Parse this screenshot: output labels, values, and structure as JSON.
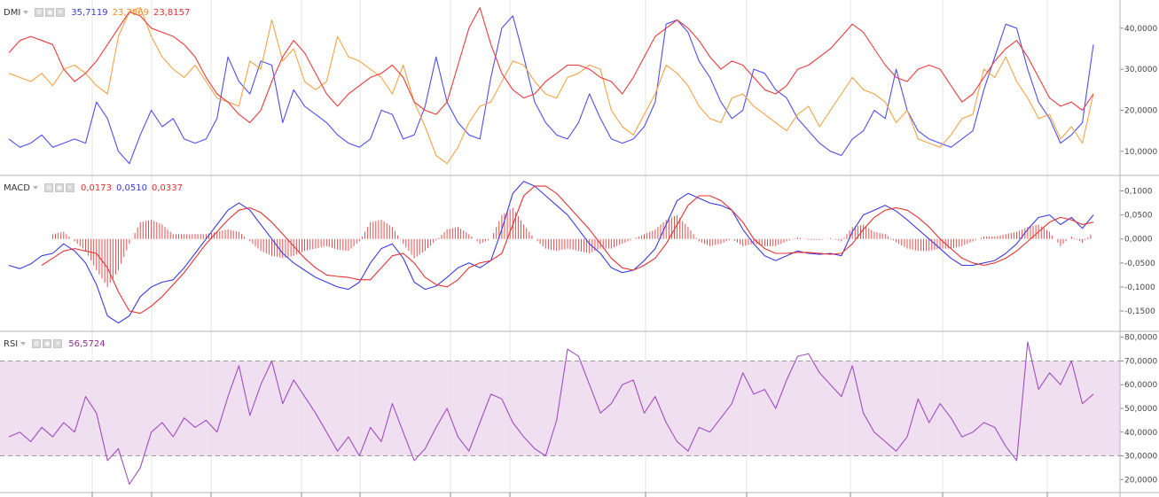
{
  "colors": {
    "dmi_plus": "#4f4ff0",
    "dmi_minus": "#f5a347",
    "adx": "#ec3b3b",
    "macd_line": "#3a3ae6",
    "signal_line": "#e83030",
    "histogram": "#e25050",
    "rsi_line": "#a24cc0",
    "rsi_band": "#efdff0",
    "grid": "#e6e6e6",
    "border": "#b5b5b5"
  },
  "icons": [
    "chevron-down-icon",
    "settings-icon",
    "eye-icon",
    "close-icon"
  ],
  "panels": {
    "dmi": {
      "name": "DMI",
      "values": [
        "35,7119",
        "23,7869",
        "23,8157"
      ]
    },
    "macd": {
      "name": "MACD",
      "values": [
        "0,0173",
        "0,0510",
        "0,0337"
      ]
    },
    "rsi": {
      "name": "RSI",
      "values": [
        "56,5724"
      ]
    }
  },
  "chart_data": [
    {
      "type": "line",
      "name": "DMI",
      "x_count": 100,
      "ylim": [
        5,
        46
      ],
      "y_ticks": [
        10,
        20,
        30,
        40
      ],
      "y_tick_labels": [
        "10,0000",
        "20,0000",
        "30,0000",
        "40,0000"
      ],
      "grid": false,
      "series": [
        {
          "key": "plus_di",
          "values": [
            13,
            11,
            12,
            14,
            11,
            12,
            13,
            12,
            22,
            18,
            10,
            7,
            14,
            20,
            16,
            18,
            13,
            12,
            13,
            18,
            33,
            27,
            24,
            32,
            31,
            17,
            25,
            21,
            19,
            17,
            14,
            12,
            11,
            13,
            20,
            19,
            13,
            14,
            21,
            33,
            22,
            17,
            14,
            13,
            28,
            40,
            43,
            33,
            22,
            17,
            14,
            13,
            17,
            24,
            18,
            13,
            12,
            13,
            16,
            22,
            41,
            42,
            39,
            32,
            28,
            22,
            18,
            20,
            30,
            29,
            25,
            23,
            18,
            15,
            12,
            10,
            9,
            13,
            15,
            20,
            18,
            30,
            20,
            15,
            13,
            12,
            11,
            13,
            15,
            25,
            33,
            41,
            40,
            30,
            22,
            18,
            12,
            14,
            17,
            36
          ]
        },
        {
          "key": "minus_di",
          "values": [
            29,
            28,
            27,
            29,
            26,
            30,
            31,
            29,
            26,
            24,
            38,
            44,
            45,
            38,
            33,
            30,
            28,
            31,
            27,
            23,
            22,
            21,
            32,
            30,
            42,
            32,
            35,
            27,
            25,
            27,
            38,
            33,
            32,
            30,
            28,
            24,
            31,
            22,
            16,
            9,
            7,
            11,
            17,
            21,
            22,
            27,
            32,
            31,
            27,
            24,
            23,
            28,
            29,
            31,
            30,
            20,
            16,
            14,
            19,
            24,
            31,
            29,
            26,
            21,
            18,
            17,
            23,
            24,
            21,
            19,
            17,
            15,
            19,
            21,
            16,
            20,
            24,
            28,
            25,
            24,
            22,
            17,
            20,
            13,
            12,
            11,
            14,
            18,
            19,
            30,
            28,
            33,
            27,
            23,
            18,
            19,
            13,
            16,
            12,
            24
          ]
        },
        {
          "key": "adx",
          "values": [
            34,
            37,
            38,
            37,
            36,
            30,
            27,
            29,
            32,
            36,
            40,
            44,
            43,
            40,
            39,
            38,
            36,
            33,
            28,
            24,
            22,
            19,
            17,
            20,
            27,
            33,
            37,
            34,
            29,
            24,
            21,
            24,
            26,
            28,
            29,
            31,
            28,
            22,
            20,
            19,
            22,
            31,
            40,
            45,
            36,
            29,
            25,
            23,
            24,
            27,
            29,
            31,
            31,
            30,
            28,
            27,
            24,
            28,
            33,
            38,
            40,
            42,
            40,
            37,
            33,
            30,
            32,
            31,
            28,
            25,
            24,
            26,
            30,
            31,
            33,
            35,
            38,
            41,
            39,
            35,
            31,
            28,
            27,
            30,
            31,
            30,
            26,
            22,
            24,
            28,
            32,
            35,
            37,
            33,
            28,
            23,
            21,
            22,
            20,
            24
          ]
        }
      ]
    },
    {
      "type": "line",
      "name": "MACD",
      "x_count": 100,
      "ylim": [
        -0.185,
        0.125
      ],
      "y_ticks": [
        -0.15,
        -0.1,
        -0.05,
        0,
        0.05,
        0.1
      ],
      "y_tick_labels": [
        "-0,1500",
        "-0,1000",
        "-0,0500",
        "0,0000",
        "0,0500",
        "0,1000"
      ],
      "grid": false,
      "histogram_x_range": [
        4,
        99
      ],
      "series": [
        {
          "key": "macd",
          "values": [
            -0.055,
            -0.062,
            -0.052,
            -0.035,
            -0.03,
            -0.01,
            -0.025,
            -0.05,
            -0.095,
            -0.16,
            -0.175,
            -0.16,
            -0.12,
            -0.1,
            -0.09,
            -0.085,
            -0.06,
            -0.03,
            0.0,
            0.03,
            0.06,
            0.075,
            0.06,
            0.03,
            0.0,
            -0.03,
            -0.05,
            -0.065,
            -0.08,
            -0.09,
            -0.1,
            -0.105,
            -0.09,
            -0.05,
            -0.02,
            -0.01,
            -0.04,
            -0.09,
            -0.105,
            -0.098,
            -0.08,
            -0.06,
            -0.05,
            -0.06,
            -0.045,
            0.02,
            0.095,
            0.12,
            0.11,
            0.09,
            0.07,
            0.05,
            0.02,
            -0.01,
            -0.03,
            -0.06,
            -0.07,
            -0.065,
            -0.045,
            -0.02,
            0.03,
            0.08,
            0.095,
            0.085,
            0.075,
            0.07,
            0.06,
            0.02,
            -0.01,
            -0.035,
            -0.045,
            -0.035,
            -0.025,
            -0.03,
            -0.032,
            -0.03,
            -0.035,
            0.015,
            0.05,
            0.06,
            0.07,
            0.058,
            0.04,
            0.02,
            0.0,
            -0.02,
            -0.04,
            -0.055,
            -0.055,
            -0.05,
            -0.045,
            -0.03,
            -0.01,
            0.02,
            0.045,
            0.05,
            0.03,
            0.045,
            0.022,
            0.05
          ]
        },
        {
          "key": "signal",
          "values": [
            null,
            null,
            null,
            -0.055,
            -0.04,
            -0.025,
            -0.02,
            -0.025,
            -0.03,
            -0.06,
            -0.11,
            -0.15,
            -0.155,
            -0.14,
            -0.12,
            -0.095,
            -0.07,
            -0.04,
            -0.01,
            0.015,
            0.04,
            0.06,
            0.065,
            0.055,
            0.035,
            0.01,
            -0.015,
            -0.04,
            -0.06,
            -0.075,
            -0.078,
            -0.08,
            -0.085,
            -0.085,
            -0.06,
            -0.035,
            -0.03,
            -0.05,
            -0.08,
            -0.095,
            -0.1,
            -0.085,
            -0.06,
            -0.05,
            -0.045,
            -0.03,
            0.03,
            0.09,
            0.11,
            0.11,
            0.095,
            0.07,
            0.045,
            0.02,
            -0.01,
            -0.04,
            -0.06,
            -0.065,
            -0.055,
            -0.04,
            -0.01,
            0.03,
            0.07,
            0.09,
            0.09,
            0.08,
            0.06,
            0.035,
            0.0,
            -0.02,
            -0.03,
            -0.03,
            -0.028,
            -0.028,
            -0.03,
            -0.032,
            -0.03,
            -0.01,
            0.02,
            0.045,
            0.06,
            0.065,
            0.06,
            0.045,
            0.025,
            0.0,
            -0.02,
            -0.04,
            -0.05,
            -0.055,
            -0.05,
            -0.04,
            -0.025,
            -0.005,
            0.015,
            0.035,
            0.045,
            0.04,
            0.03,
            0.035
          ]
        }
      ]
    },
    {
      "type": "line",
      "name": "RSI",
      "x_count": 100,
      "ylim": [
        16,
        81
      ],
      "y_ticks": [
        20,
        30,
        40,
        50,
        60,
        70,
        80
      ],
      "y_tick_labels": [
        "20,0000",
        "30,0000",
        "40,0000",
        "50,0000",
        "60,0000",
        "70,0000",
        "80,0000"
      ],
      "upper_band": 70,
      "lower_band": 30,
      "grid": false,
      "series": [
        {
          "key": "rsi",
          "values": [
            38,
            40,
            36,
            42,
            38,
            44,
            40,
            55,
            48,
            28,
            33,
            18,
            25,
            40,
            44,
            38,
            46,
            42,
            45,
            40,
            55,
            68,
            47,
            60,
            70,
            52,
            62,
            55,
            48,
            40,
            32,
            38,
            30,
            42,
            36,
            52,
            40,
            28,
            33,
            42,
            50,
            38,
            32,
            44,
            56,
            54,
            44,
            38,
            33,
            30,
            45,
            75,
            72,
            60,
            48,
            52,
            60,
            62,
            48,
            55,
            44,
            36,
            32,
            42,
            40,
            46,
            52,
            65,
            56,
            58,
            50,
            62,
            72,
            73,
            65,
            60,
            55,
            68,
            48,
            40,
            36,
            32,
            38,
            54,
            44,
            52,
            46,
            38,
            40,
            44,
            42,
            34,
            28,
            78,
            58,
            65,
            60,
            70,
            52,
            56
          ]
        }
      ]
    }
  ]
}
